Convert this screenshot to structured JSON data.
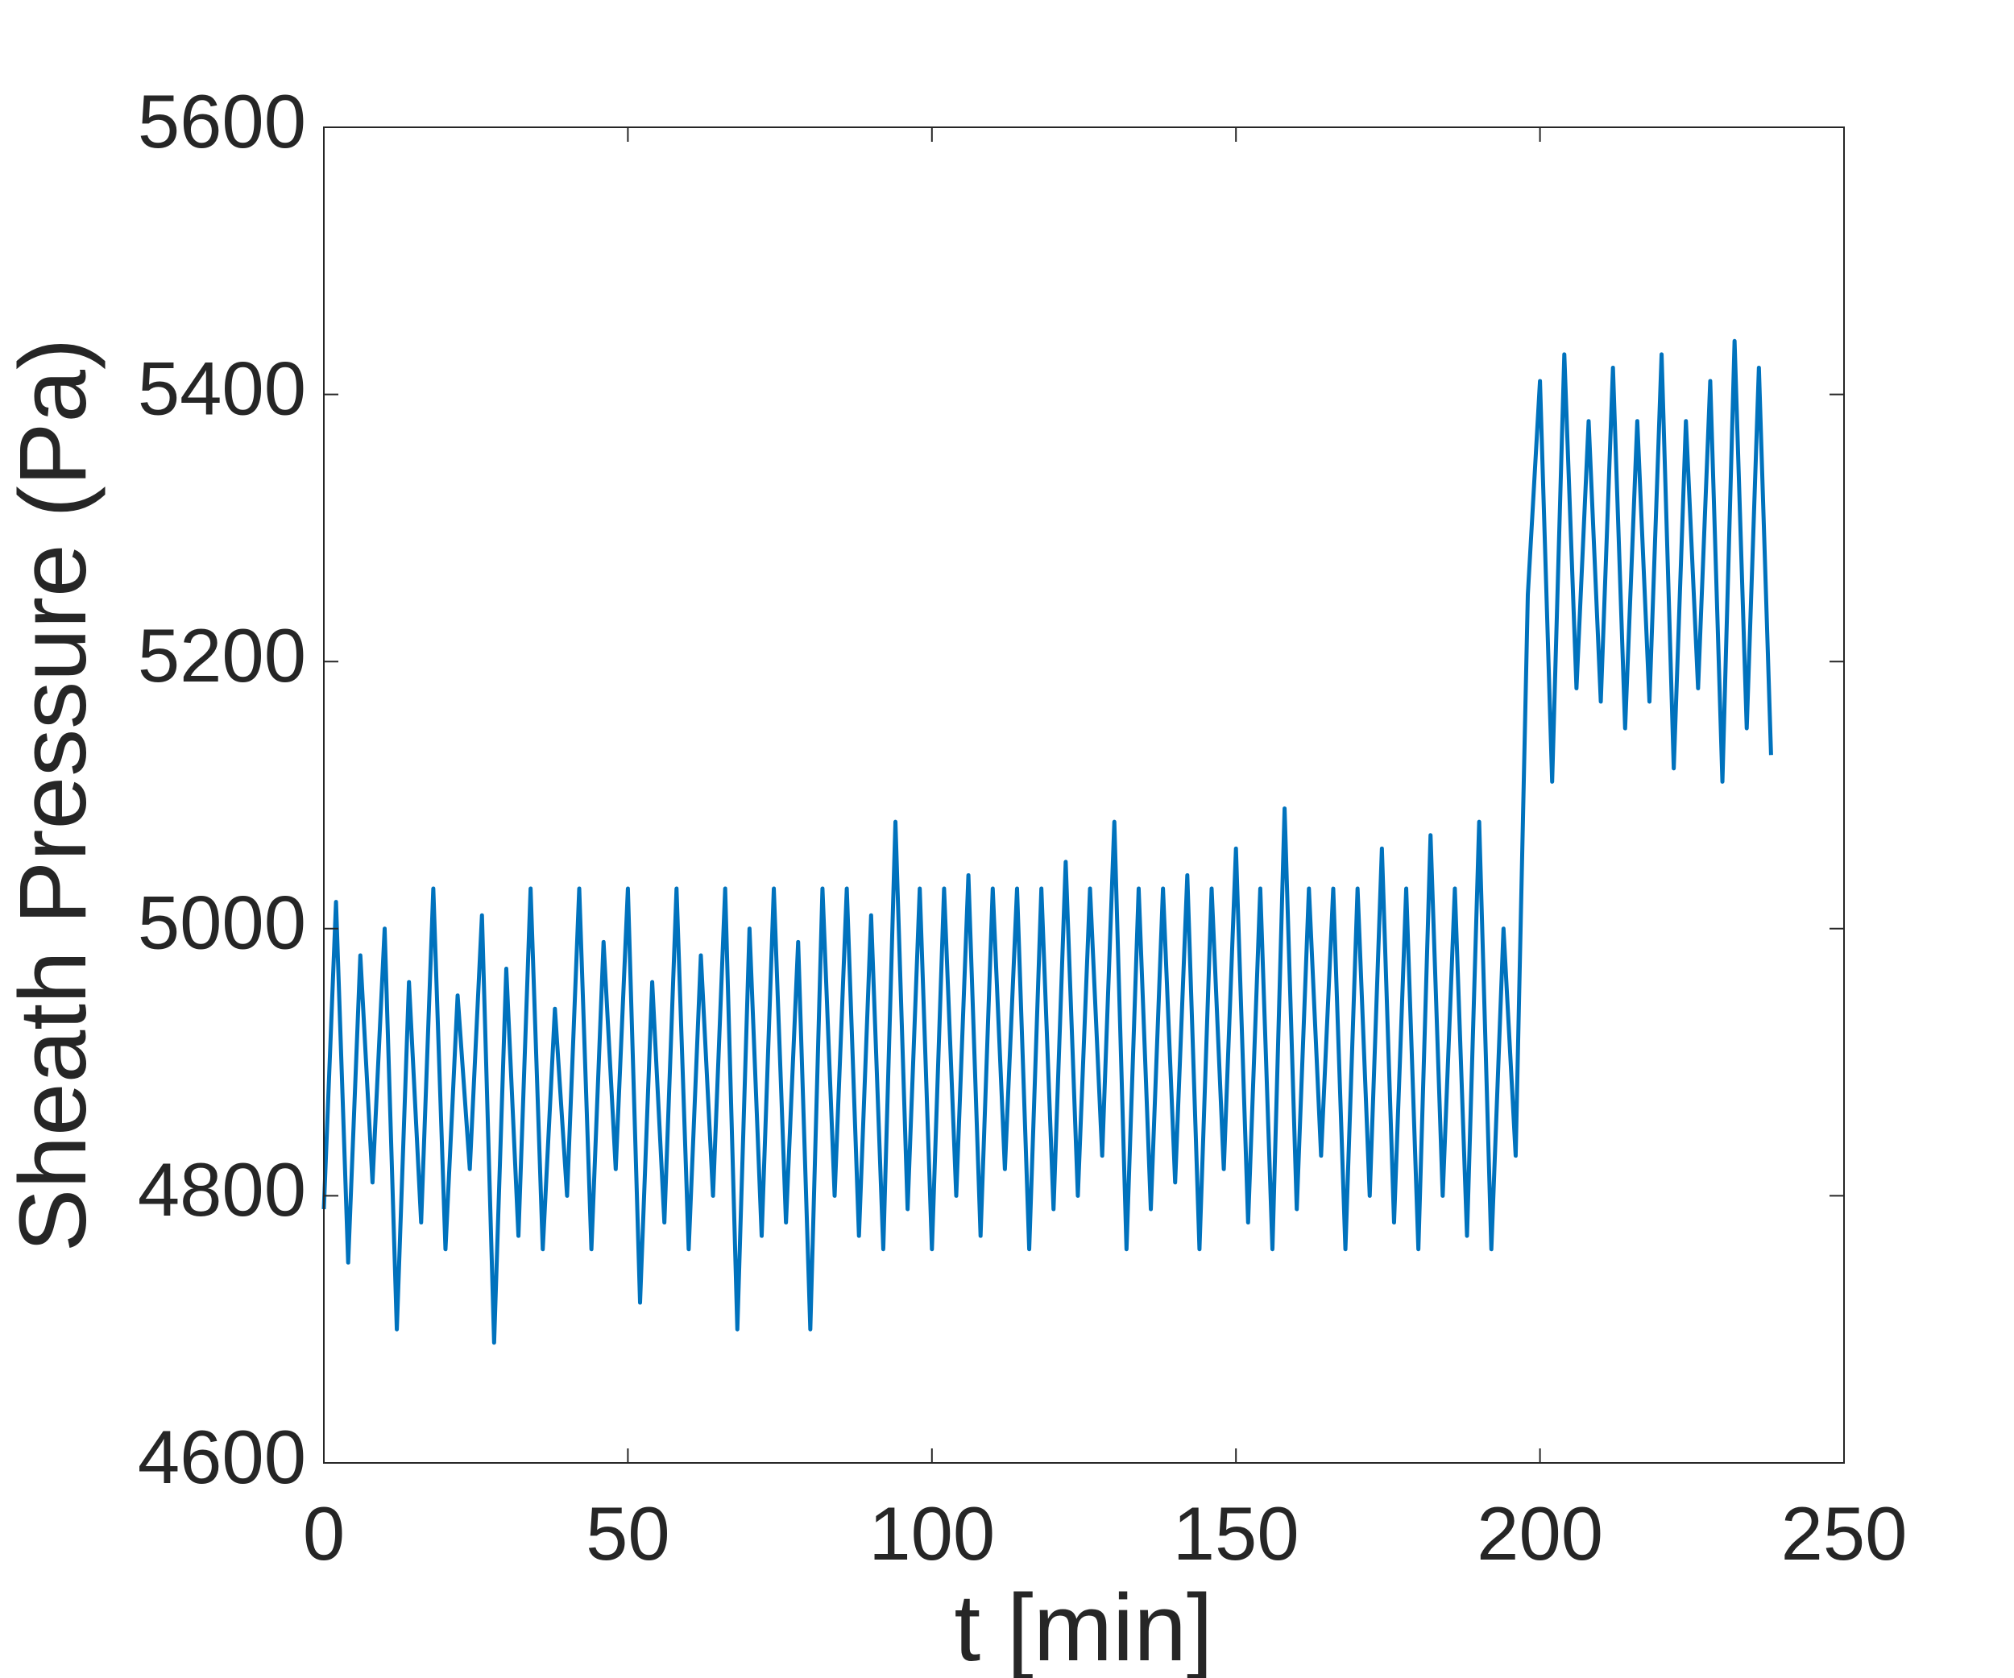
{
  "chart_data": {
    "type": "line",
    "xlabel": "t [min]",
    "ylabel": "Sheath Pressure (Pa)",
    "xlim": [
      0,
      250
    ],
    "xticks": [
      0,
      50,
      100,
      150,
      200,
      250
    ],
    "ylim": [
      4600,
      5600
    ],
    "yticks": [
      4600,
      4800,
      5000,
      5200,
      5400,
      5600
    ],
    "series": [
      {
        "color": "#0072bd",
        "x": [
          0,
          2,
          4,
          6,
          8,
          10,
          12,
          14,
          16,
          18,
          20,
          22,
          24,
          26,
          28,
          30,
          32,
          34,
          36,
          38,
          40,
          42,
          44,
          46,
          48,
          50,
          52,
          54,
          56,
          58,
          60,
          62,
          64,
          66,
          68,
          70,
          72,
          74,
          76,
          78,
          80,
          82,
          84,
          86,
          88,
          90,
          92,
          94,
          96,
          98,
          100,
          102,
          104,
          106,
          108,
          110,
          112,
          114,
          116,
          118,
          120,
          122,
          124,
          126,
          128,
          130,
          132,
          134,
          136,
          138,
          140,
          142,
          144,
          146,
          148,
          150,
          152,
          154,
          156,
          158,
          160,
          162,
          164,
          166,
          168,
          170,
          172,
          174,
          176,
          178,
          180,
          182,
          184,
          186,
          188,
          190,
          192,
          194,
          196,
          198,
          200,
          202,
          204,
          206,
          208,
          210,
          212,
          214,
          216,
          218,
          220,
          222,
          224,
          226,
          228,
          230,
          232,
          234,
          236,
          238
        ],
        "values": [
          4790,
          5020,
          4750,
          4980,
          4810,
          5000,
          4700,
          4960,
          4780,
          5030,
          4760,
          4950,
          4820,
          5010,
          4690,
          4970,
          4770,
          5030,
          4760,
          4940,
          4800,
          5030,
          4760,
          4990,
          4820,
          5030,
          4720,
          4960,
          4780,
          5030,
          4760,
          4980,
          4800,
          5030,
          4700,
          5000,
          4770,
          5030,
          4780,
          4990,
          4700,
          5030,
          4800,
          5030,
          4770,
          5010,
          4760,
          5080,
          4790,
          5030,
          4760,
          5030,
          4800,
          5040,
          4770,
          5030,
          4820,
          5030,
          4760,
          5030,
          4790,
          5050,
          4800,
          5030,
          4830,
          5080,
          4760,
          5030,
          4790,
          5030,
          4810,
          5040,
          4760,
          5030,
          4820,
          5060,
          4780,
          5030,
          4760,
          5090,
          4790,
          5030,
          4830,
          5030,
          4760,
          5030,
          4800,
          5060,
          4780,
          5030,
          4760,
          5070,
          4800,
          5030,
          4770,
          5080,
          4760,
          5000,
          4830,
          5250,
          5410,
          5110,
          5430,
          5180,
          5380,
          5170,
          5420,
          5150,
          5380,
          5170,
          5430,
          5120,
          5380,
          5180,
          5410,
          5110,
          5440,
          5150,
          5420,
          5130
        ]
      }
    ]
  }
}
